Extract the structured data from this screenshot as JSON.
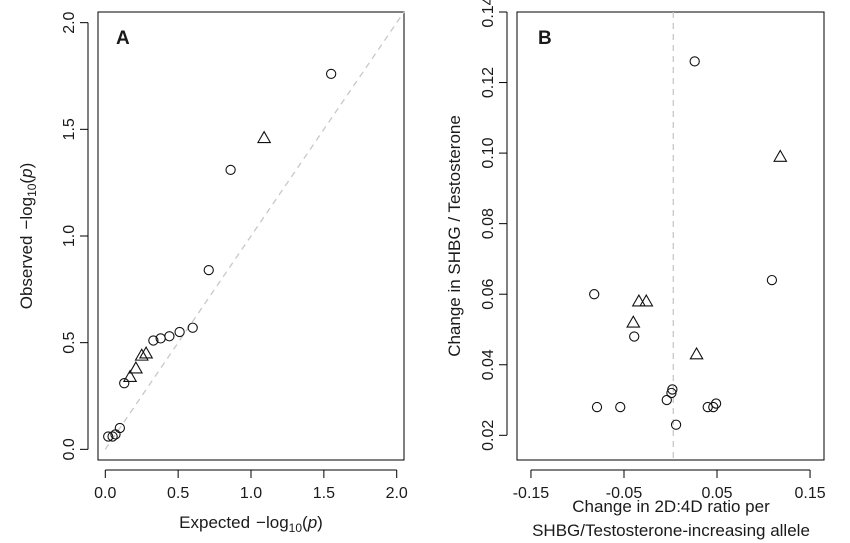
{
  "chart_data": [
    {
      "type": "scatter",
      "panel_label": "A",
      "xlabel_prefix": "Expected",
      "ylabel_prefix": "Observed",
      "axis_label_math": [
        "−log",
        "10",
        "(",
        "p",
        ")"
      ],
      "xlim": [
        -0.05,
        2.05
      ],
      "ylim": [
        -0.05,
        2.05
      ],
      "xticks": [
        "0.0",
        "0.5",
        "1.0",
        "1.5",
        "2.0"
      ],
      "yticks": [
        "0.0",
        "0.5",
        "1.0",
        "1.5",
        "2.0"
      ],
      "reference_line": {
        "from": [
          0,
          0
        ],
        "to": [
          2.05,
          2.05
        ],
        "style": "dashed",
        "color": "#c8c8c8"
      },
      "series": [
        {
          "marker": "circle",
          "points": [
            [
              0.02,
              0.06
            ],
            [
              0.05,
              0.06
            ],
            [
              0.07,
              0.07
            ],
            [
              0.1,
              0.1
            ],
            [
              0.13,
              0.31
            ],
            [
              0.33,
              0.51
            ],
            [
              0.38,
              0.52
            ],
            [
              0.44,
              0.53
            ],
            [
              0.51,
              0.55
            ],
            [
              0.6,
              0.57
            ],
            [
              0.71,
              0.84
            ],
            [
              0.86,
              1.31
            ],
            [
              1.55,
              1.76
            ]
          ]
        },
        {
          "marker": "triangle",
          "points": [
            [
              0.17,
              0.34
            ],
            [
              0.21,
              0.38
            ],
            [
              0.25,
              0.44
            ],
            [
              0.28,
              0.45
            ],
            [
              1.09,
              1.46
            ]
          ]
        }
      ]
    },
    {
      "type": "scatter",
      "panel_label": "B",
      "xlabel_lines": [
        "Change in 2D:4D ratio per",
        "SHBG/Testosterone-increasing allele"
      ],
      "ylabel": "Change in SHBG / Testosterone",
      "xlim": [
        -0.165,
        0.165
      ],
      "ylim": [
        0.013,
        0.14
      ],
      "xticks": [
        "-0.15",
        "-0.05",
        "0.05",
        "0.15"
      ],
      "yticks": [
        "0.02",
        "0.04",
        "0.06",
        "0.08",
        "0.10",
        "0.12",
        "0.14"
      ],
      "reference_line": {
        "x": 0.003,
        "style": "dashed",
        "color": "#c8c8c8"
      },
      "series": [
        {
          "marker": "circle",
          "points": [
            [
              -0.082,
              0.06
            ],
            [
              -0.079,
              0.028
            ],
            [
              -0.054,
              0.028
            ],
            [
              -0.039,
              0.048
            ],
            [
              -0.004,
              0.03
            ],
            [
              0.001,
              0.032
            ],
            [
              0.002,
              0.033
            ],
            [
              0.006,
              0.023
            ],
            [
              0.026,
              0.126
            ],
            [
              0.04,
              0.028
            ],
            [
              0.046,
              0.028
            ],
            [
              0.049,
              0.029
            ],
            [
              0.109,
              0.064
            ]
          ]
        },
        {
          "marker": "triangle",
          "points": [
            [
              -0.04,
              0.052
            ],
            [
              -0.034,
              0.058
            ],
            [
              -0.026,
              0.058
            ],
            [
              0.028,
              0.043
            ],
            [
              0.118,
              0.099
            ]
          ]
        }
      ]
    }
  ]
}
